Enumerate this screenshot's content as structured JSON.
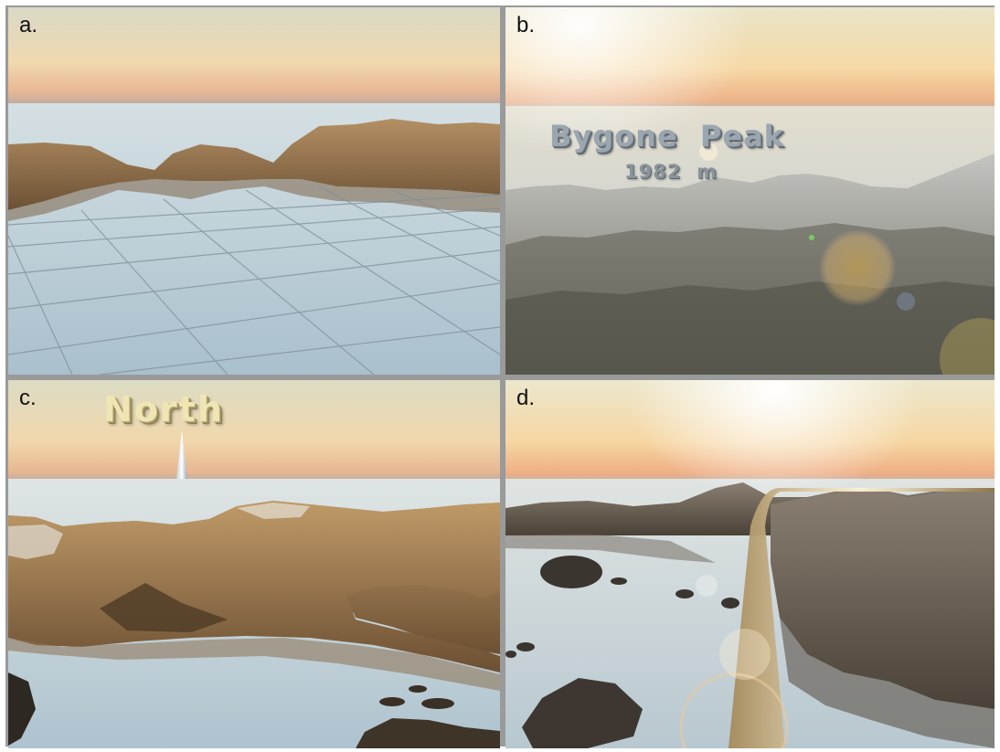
{
  "panels": {
    "a": {
      "letter": "a."
    },
    "b": {
      "letter": "b.",
      "peak_name": "Bygone  Peak",
      "peak_elevation": "1982  m"
    },
    "c": {
      "letter": "c.",
      "direction_label": "North"
    },
    "d": {
      "letter": "d."
    }
  },
  "colors": {
    "sky_top": "#dcd6be",
    "sky_horizon": "#f2c79a",
    "water": "#c9d8e0",
    "grid_line": "#7f8e98",
    "rock": "#9b7a52",
    "snow_rock": "#c9c7c2",
    "frame": "#9a9a9a"
  }
}
